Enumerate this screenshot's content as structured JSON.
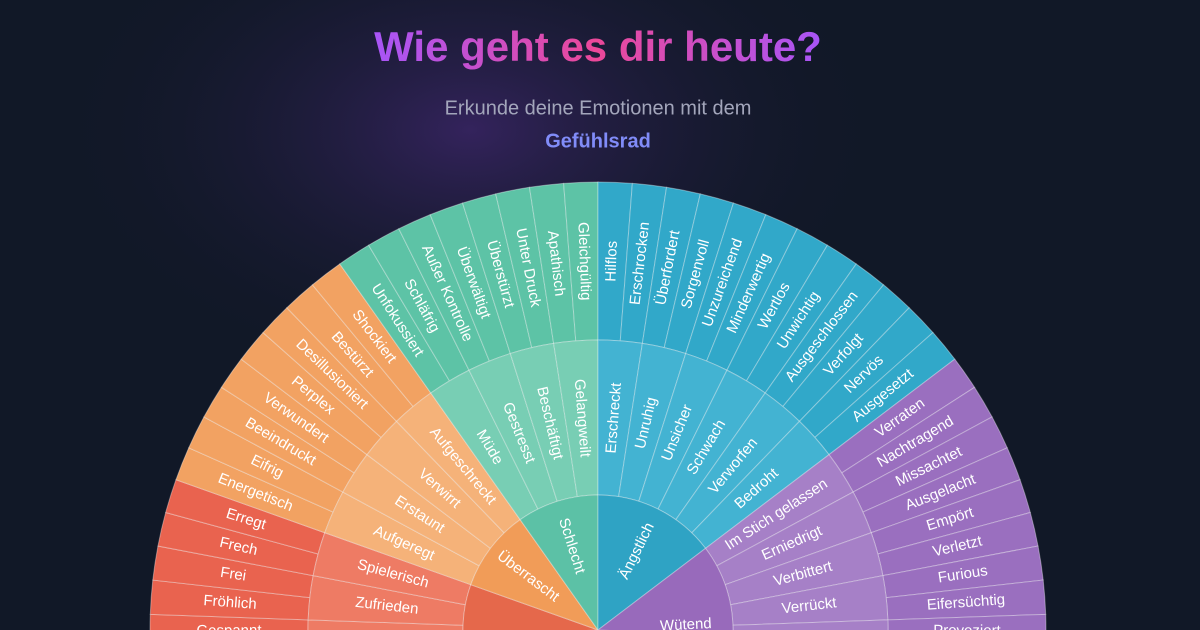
{
  "header": {
    "title": "Wie geht es dir heute?",
    "subtitle": "Erkunde deine Emotionen mit dem",
    "highlight": "Gefühlsrad"
  },
  "wheel": {
    "groups": [
      {
        "subs": [
          {
            "leaves": [
              "Gespannt"
            ]
          },
          {
            "label": "Zufrieden",
            "leaves": [
              "Fröhlich",
              "Frei"
            ]
          },
          {
            "label": "Spielerisch",
            "leaves": [
              "Frech",
              "Erregt"
            ]
          }
        ]
      },
      {
        "label": "Überrascht",
        "subs": [
          {
            "label": "Aufgeregt",
            "leaves": [
              "Energetisch",
              "Eifrig"
            ]
          },
          {
            "label": "Erstaunt",
            "leaves": [
              "Beeindruckt",
              "Verwundert"
            ]
          },
          {
            "label": "Verwirrt",
            "leaves": [
              "Perplex",
              "Desillusioniert"
            ]
          },
          {
            "label": "Aufgeschreckt",
            "leaves": [
              "Bestürzt",
              "Shockiert"
            ]
          }
        ]
      },
      {
        "label": "Schlecht",
        "subs": [
          {
            "label": "Müde",
            "leaves": [
              "Unfokussiert",
              "Schläfrig"
            ]
          },
          {
            "label": "Gestresst",
            "leaves": [
              "Außer Kontrolle",
              "Überwältigt"
            ]
          },
          {
            "label": "Beschäftigt",
            "leaves": [
              "Überstürzt",
              "Unter Druck"
            ]
          },
          {
            "label": "Gelangweilt",
            "leaves": [
              "Apathisch",
              "Gleichgültig"
            ]
          }
        ]
      },
      {
        "label": "Ängstlich",
        "subs": [
          {
            "label": "Erschreckt",
            "leaves": [
              "Hilflos",
              "Erschrocken"
            ]
          },
          {
            "label": "Unruhig",
            "leaves": [
              "Überfordert",
              "Sorgenvoll"
            ]
          },
          {
            "label": "Unsicher",
            "leaves": [
              "Unzureichend",
              "Minderwertig"
            ]
          },
          {
            "label": "Schwach",
            "leaves": [
              "Wertlos",
              "Unwichtig"
            ]
          },
          {
            "label": "Verworfen",
            "leaves": [
              "Ausgeschlossen",
              "Verfolgt"
            ]
          },
          {
            "label": "Bedroht",
            "leaves": [
              "Nervös",
              "Ausgesetzt"
            ]
          }
        ]
      },
      {
        "label": "Wütend",
        "subs": [
          {
            "label": "Im Stich gelassen",
            "leaves": [
              "Verraten",
              "Nachtragend"
            ]
          },
          {
            "label": "Erniedrigt",
            "leaves": [
              "Missachtet",
              "Ausgelacht"
            ]
          },
          {
            "label": "Verbittert",
            "leaves": [
              "Empört",
              "Verletzt"
            ]
          },
          {
            "label": "Verrückt",
            "leaves": [
              "Furious",
              "Eifersüchtig"
            ]
          },
          {
            "leaves": [
              "Provoziert"
            ]
          }
        ]
      }
    ]
  }
}
